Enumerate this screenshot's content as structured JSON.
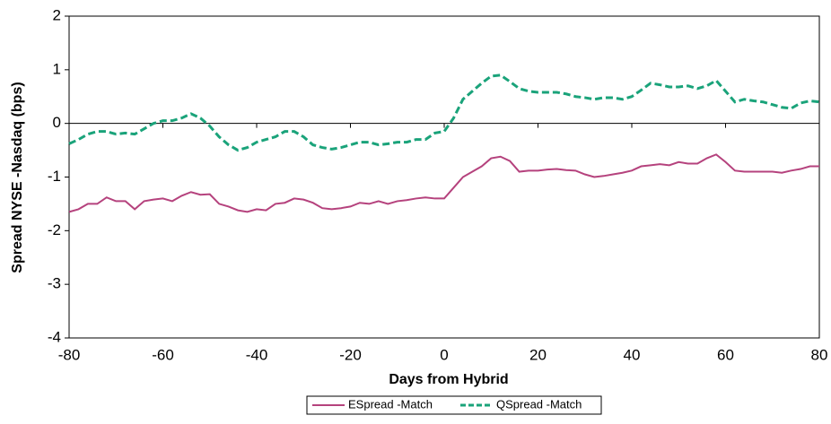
{
  "chart_data": {
    "type": "line",
    "x_label": "Days from Hybrid",
    "y_label": "Spread NYSE -Nasdaq (bps)",
    "x": [
      -80,
      -78,
      -76,
      -74,
      -72,
      -70,
      -68,
      -66,
      -64,
      -62,
      -60,
      -58,
      -56,
      -54,
      -52,
      -50,
      -48,
      -46,
      -44,
      -42,
      -40,
      -38,
      -36,
      -34,
      -32,
      -30,
      -28,
      -26,
      -24,
      -22,
      -20,
      -18,
      -16,
      -14,
      -12,
      -10,
      -8,
      -6,
      -4,
      -2,
      0,
      2,
      4,
      6,
      8,
      10,
      12,
      14,
      16,
      18,
      20,
      22,
      24,
      26,
      28,
      30,
      32,
      34,
      36,
      38,
      40,
      42,
      44,
      46,
      48,
      50,
      52,
      54,
      56,
      58,
      60,
      62,
      64,
      66,
      68,
      70,
      72,
      74,
      76,
      78,
      80
    ],
    "series": [
      {
        "name": "ESpread -Match",
        "color": "#b5427d",
        "dashed": false,
        "values": [
          -1.65,
          -1.6,
          -1.5,
          -1.5,
          -1.38,
          -1.45,
          -1.45,
          -1.6,
          -1.45,
          -1.42,
          -1.4,
          -1.45,
          -1.35,
          -1.28,
          -1.33,
          -1.32,
          -1.5,
          -1.55,
          -1.62,
          -1.65,
          -1.6,
          -1.62,
          -1.5,
          -1.48,
          -1.4,
          -1.42,
          -1.48,
          -1.58,
          -1.6,
          -1.58,
          -1.55,
          -1.48,
          -1.5,
          -1.45,
          -1.5,
          -1.45,
          -1.43,
          -1.4,
          -1.38,
          -1.4,
          -1.4,
          -1.2,
          -1.0,
          -0.9,
          -0.8,
          -0.65,
          -0.62,
          -0.7,
          -0.9,
          -0.88,
          -0.88,
          -0.86,
          -0.85,
          -0.87,
          -0.88,
          -0.95,
          -1.0,
          -0.98,
          -0.95,
          -0.92,
          -0.88,
          -0.8,
          -0.78,
          -0.76,
          -0.78,
          -0.72,
          -0.75,
          -0.75,
          -0.65,
          -0.58,
          -0.72,
          -0.88,
          -0.9,
          -0.9,
          -0.9,
          -0.9,
          -0.92,
          -0.88,
          -0.85,
          -0.8,
          -0.8
        ]
      },
      {
        "name": "QSpread -Match",
        "color": "#1aa37a",
        "dashed": true,
        "values": [
          -0.38,
          -0.3,
          -0.2,
          -0.15,
          -0.15,
          -0.2,
          -0.18,
          -0.2,
          -0.1,
          0.0,
          0.05,
          0.05,
          0.1,
          0.18,
          0.1,
          -0.05,
          -0.25,
          -0.4,
          -0.5,
          -0.45,
          -0.35,
          -0.3,
          -0.25,
          -0.15,
          -0.15,
          -0.25,
          -0.4,
          -0.45,
          -0.48,
          -0.45,
          -0.4,
          -0.35,
          -0.35,
          -0.4,
          -0.38,
          -0.35,
          -0.35,
          -0.3,
          -0.3,
          -0.18,
          -0.15,
          0.1,
          0.45,
          0.6,
          0.75,
          0.88,
          0.9,
          0.78,
          0.65,
          0.6,
          0.58,
          0.58,
          0.58,
          0.55,
          0.5,
          0.48,
          0.45,
          0.48,
          0.48,
          0.45,
          0.5,
          0.62,
          0.75,
          0.72,
          0.68,
          0.68,
          0.7,
          0.65,
          0.7,
          0.8,
          0.6,
          0.4,
          0.45,
          0.42,
          0.4,
          0.35,
          0.3,
          0.28,
          0.38,
          0.42,
          0.4
        ]
      }
    ],
    "xlim": [
      -80,
      80
    ],
    "ylim": [
      -4,
      2
    ],
    "xticks": [
      -80,
      -60,
      -40,
      -20,
      0,
      20,
      40,
      60,
      80
    ],
    "yticks": [
      -4,
      -3,
      -2,
      -1,
      0,
      1,
      2
    ],
    "legend": "bottom"
  }
}
